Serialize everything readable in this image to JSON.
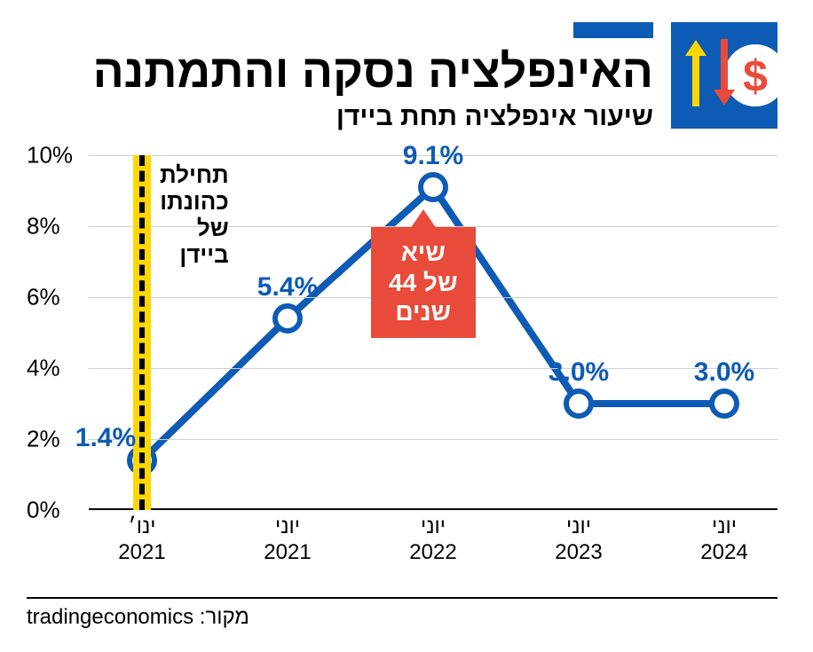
{
  "header": {
    "title": "האינפלציה נסקה והתמתנה",
    "subtitle": "שיעור אינפלציה תחת ביידן",
    "title_bar_color": "#0d5bb5",
    "icon_bg": "#0d5bb5"
  },
  "chart": {
    "type": "line",
    "ylim": [
      0,
      10
    ],
    "ytick_step": 2,
    "y_labels": [
      "0%",
      "2%",
      "4%",
      "6%",
      "8%",
      "10%"
    ],
    "x_categories": [
      {
        "line1": "ינו׳",
        "line2": "2021"
      },
      {
        "line1": "יוני",
        "line2": "2021"
      },
      {
        "line1": "יוני",
        "line2": "2022"
      },
      {
        "line1": "יוני",
        "line2": "2023"
      },
      {
        "line1": "יוני",
        "line2": "2024"
      }
    ],
    "values": [
      1.4,
      5.4,
      9.1,
      3.0,
      3.0
    ],
    "value_labels": [
      "1.4%",
      "5.4%",
      "9.1%",
      "3.0%",
      "3.0%"
    ],
    "line_color": "#0d5bb5",
    "line_width": 8,
    "marker_fill": "#ffffff",
    "marker_stroke": "#0d5bb5",
    "marker_radius": 14,
    "marker_stroke_width": 6,
    "label_color": "#0d5bb5",
    "grid_color": "#d0d0d0",
    "background_color": "#ffffff"
  },
  "vertical_marker": {
    "at_index": 0,
    "highlight_color": "#ffd700",
    "dash_color": "#000000",
    "label": "תחילת\nכהונתו\nשל\nביידן"
  },
  "callout": {
    "at_index": 2,
    "text": "שיא\nשל 44\nשנים",
    "bg": "#e84b3a",
    "color": "#ffffff"
  },
  "source": {
    "prefix": "מקור:",
    "value": "tradingeconomics"
  }
}
